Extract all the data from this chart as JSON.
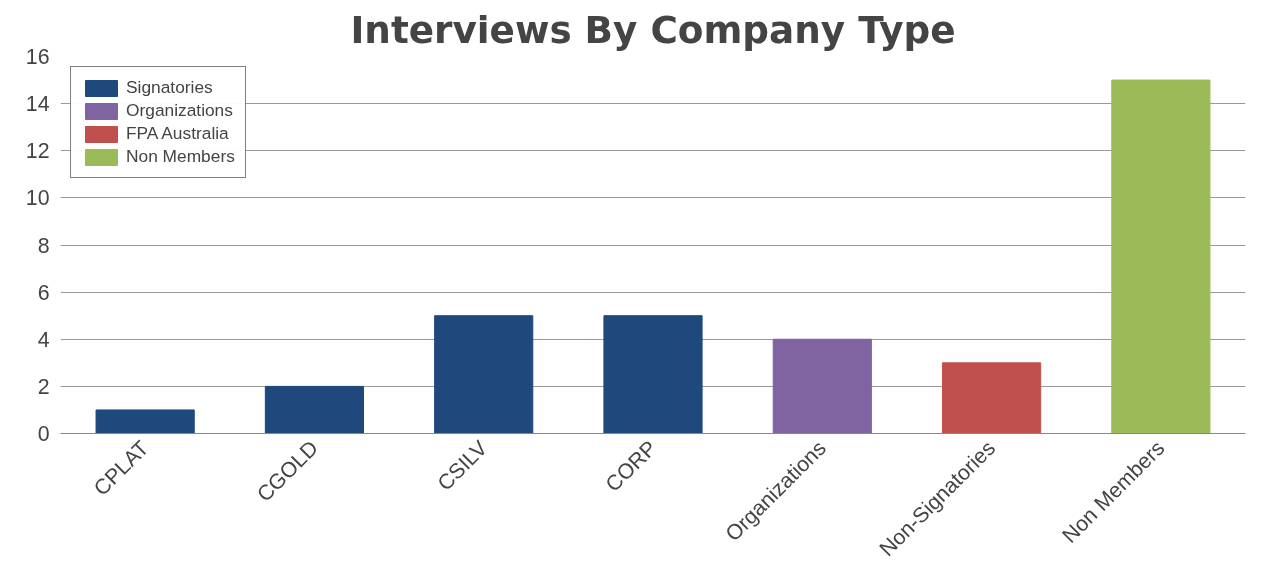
{
  "chart_data": {
    "type": "bar",
    "title": "Interviews By Company Type",
    "categories": [
      "CPLAT",
      "CGOLD",
      "CSILV",
      "CORP",
      "Organizations",
      "Non-Signatories",
      "Non Members"
    ],
    "series": [
      {
        "name": "Signatories",
        "color": "#1f497d",
        "values": [
          1,
          2,
          5,
          5,
          null,
          null,
          null
        ]
      },
      {
        "name": "Organizations",
        "color": "#8064a2",
        "values": [
          null,
          null,
          null,
          null,
          4,
          null,
          null
        ]
      },
      {
        "name": "FPA Australia",
        "color": "#c0504d",
        "values": [
          null,
          null,
          null,
          null,
          null,
          3,
          null
        ]
      },
      {
        "name": "Non Members",
        "color": "#9bbb59",
        "values": [
          null,
          null,
          null,
          null,
          null,
          null,
          15
        ]
      }
    ],
    "ylim": [
      0,
      16
    ],
    "yticks": [
      0,
      2,
      4,
      6,
      8,
      10,
      12,
      14,
      16
    ],
    "grid": "y",
    "legend": "top left"
  }
}
